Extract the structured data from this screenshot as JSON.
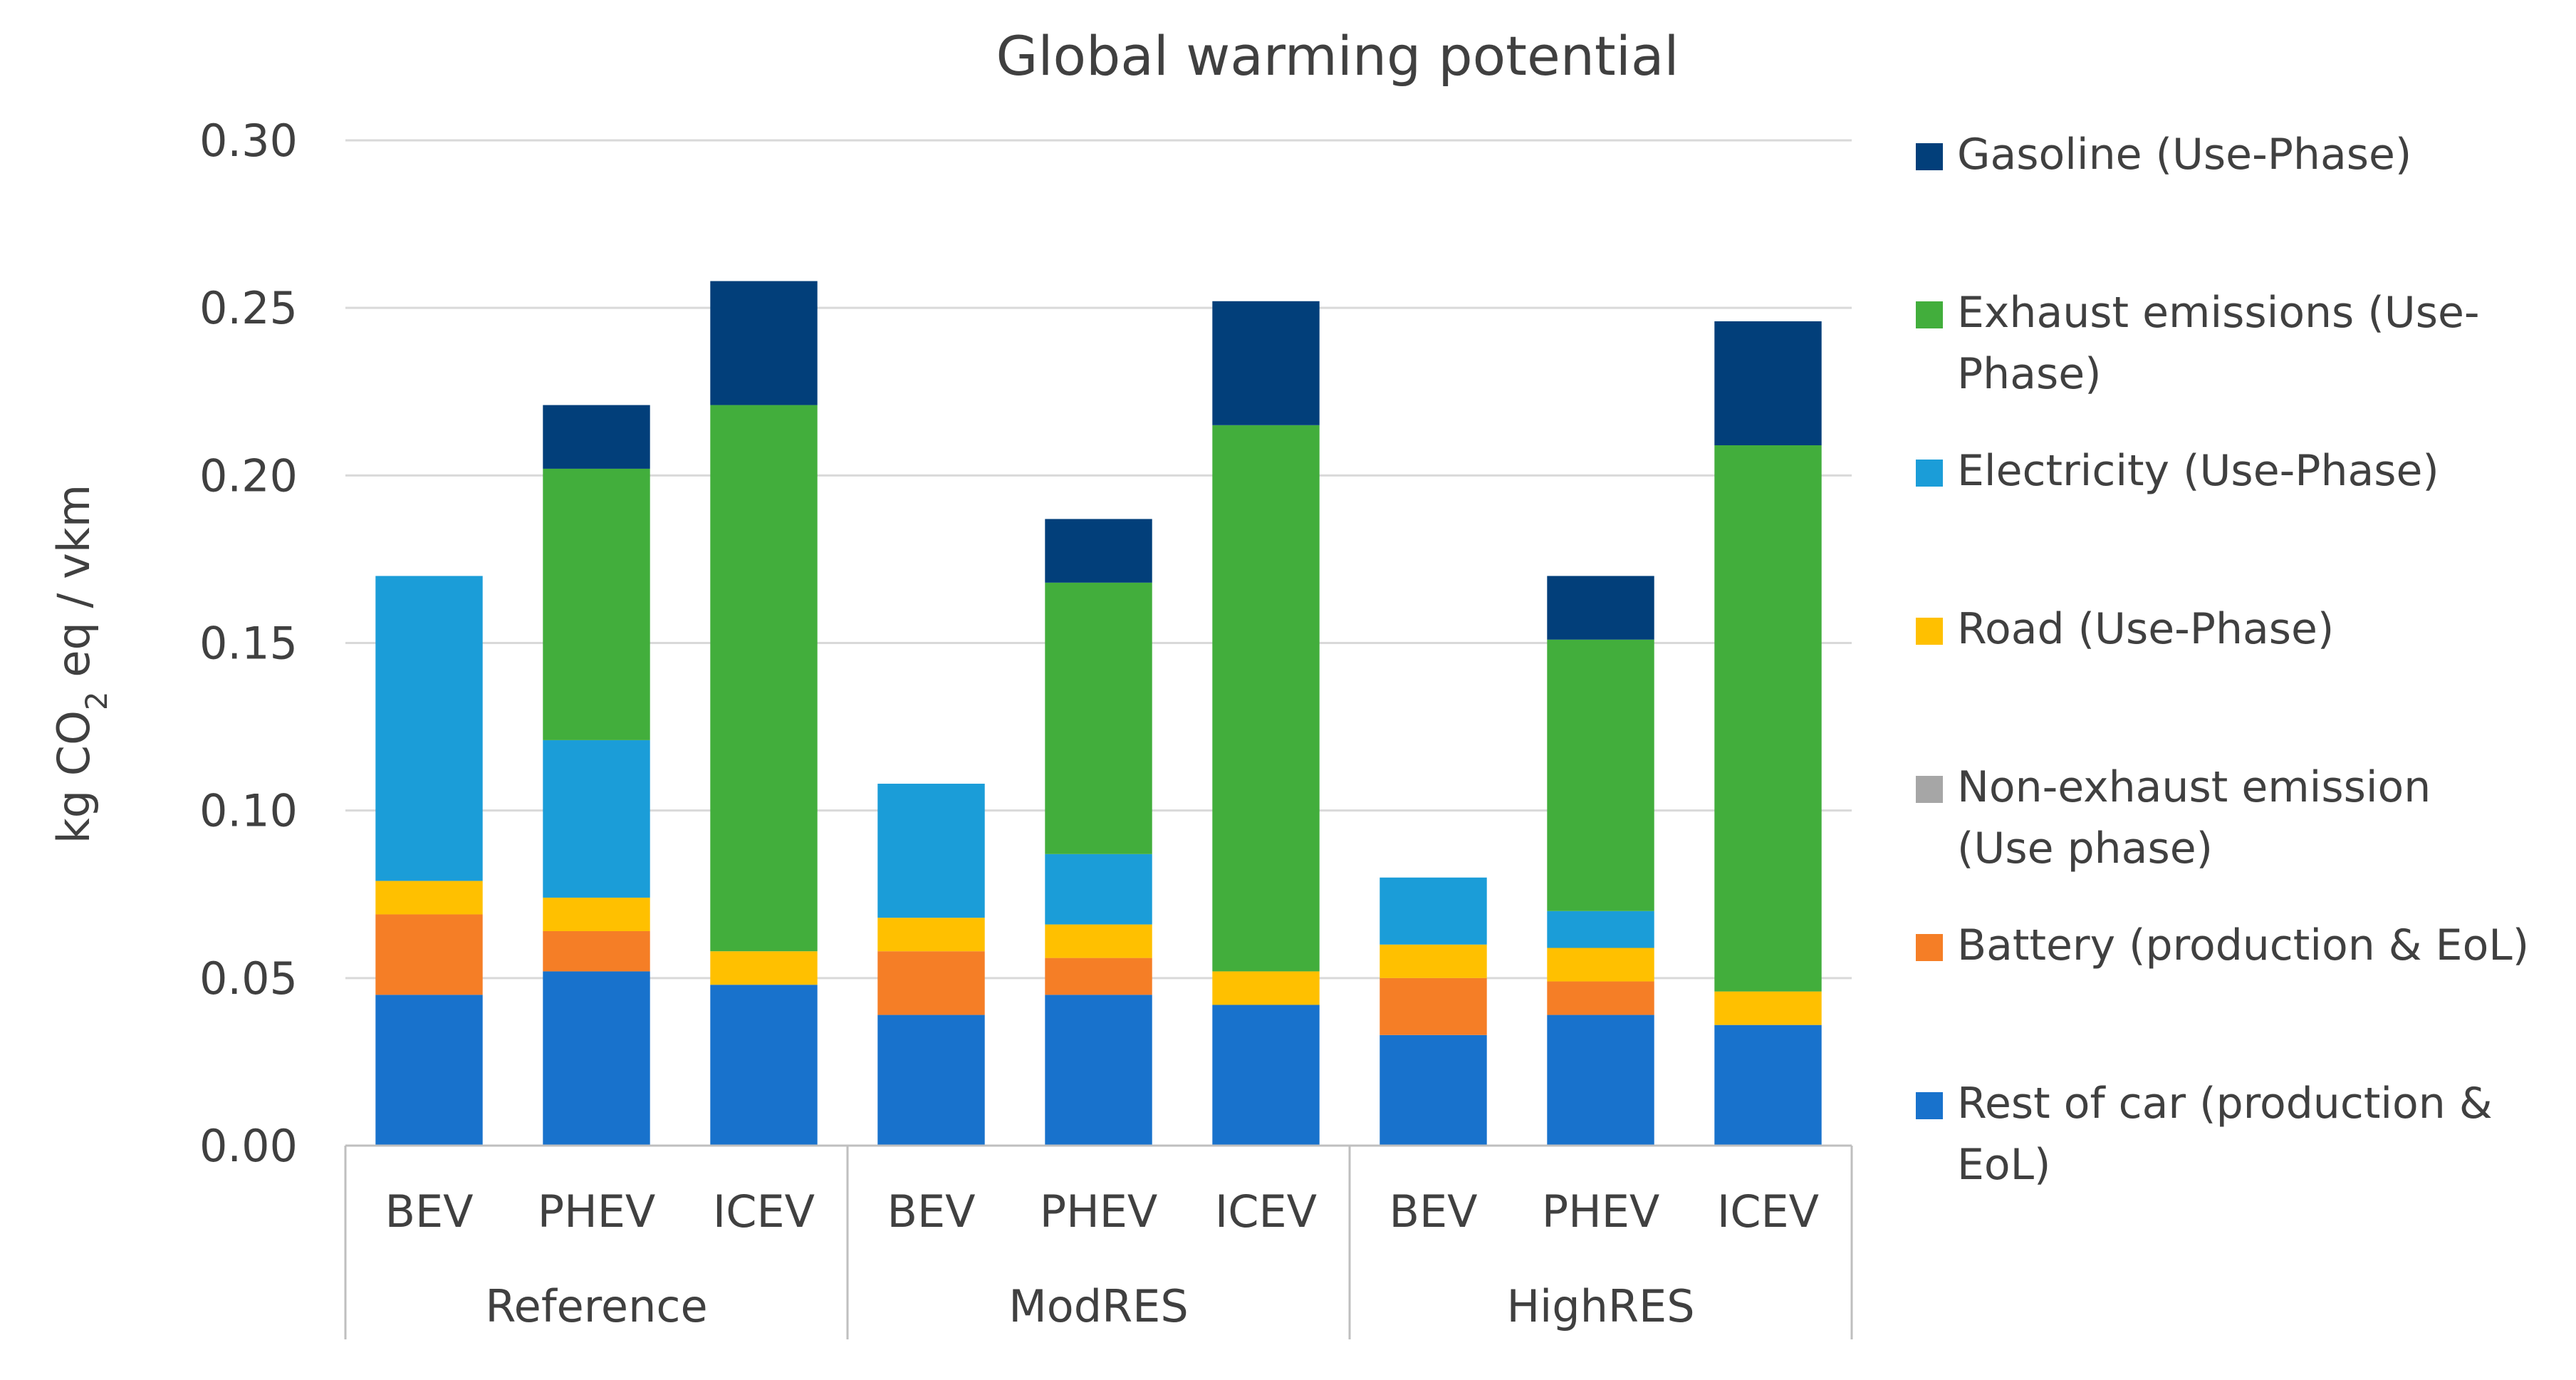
{
  "chart_data": {
    "type": "bar",
    "stacked": true,
    "title": "Global warming potential",
    "ylabel": {
      "prefix": "kg CO",
      "subscript": "2",
      "suffix": " eq / vkm"
    },
    "xlabel": "",
    "ylim": [
      0,
      0.3
    ],
    "yticks": [
      "0.00",
      "0.05",
      "0.10",
      "0.15",
      "0.20",
      "0.25",
      "0.30"
    ],
    "ytick_values": [
      0,
      0.05,
      0.1,
      0.15,
      0.2,
      0.25,
      0.3
    ],
    "grid": true,
    "legend_position": "right",
    "groups": [
      {
        "name": "Reference",
        "categories": [
          "BEV",
          "PHEV",
          "ICEV"
        ]
      },
      {
        "name": "ModRES",
        "categories": [
          "BEV",
          "PHEV",
          "ICEV"
        ]
      },
      {
        "name": "HighRES",
        "categories": [
          "BEV",
          "PHEV",
          "ICEV"
        ]
      }
    ],
    "categories": [
      "BEV",
      "PHEV",
      "ICEV",
      "BEV",
      "PHEV",
      "ICEV",
      "BEV",
      "PHEV",
      "ICEV"
    ],
    "series": [
      {
        "name": "Rest of car (production & EoL)",
        "color": "#1872CC",
        "values": [
          0.045,
          0.052,
          0.048,
          0.039,
          0.045,
          0.042,
          0.033,
          0.039,
          0.036
        ]
      },
      {
        "name": "Battery (production & EoL)",
        "color": "#F57E26",
        "values": [
          0.024,
          0.012,
          0.0,
          0.019,
          0.011,
          0.0,
          0.017,
          0.01,
          0.0
        ]
      },
      {
        "name": "Non-exhaust emission (Use phase)",
        "color": "#A6A6A6",
        "values": [
          0.0,
          0.0,
          0.0,
          0.0,
          0.0,
          0.0,
          0.0,
          0.0,
          0.0
        ]
      },
      {
        "name": " Road (Use-Phase)",
        "color": "#FFC000",
        "values": [
          0.01,
          0.01,
          0.01,
          0.01,
          0.01,
          0.01,
          0.01,
          0.01,
          0.01
        ]
      },
      {
        "name": "Electricity (Use-Phase)",
        "color": "#1B9DD8",
        "values": [
          0.091,
          0.047,
          0.0,
          0.04,
          0.021,
          0.0,
          0.02,
          0.011,
          0.0
        ]
      },
      {
        "name": "Exhaust emissions (Use-Phase)",
        "color": "#42AE3C",
        "values": [
          0.0,
          0.081,
          0.163,
          0.0,
          0.081,
          0.163,
          0.0,
          0.081,
          0.163
        ]
      },
      {
        "name": "Gasoline (Use-Phase)",
        "color": "#023F7A",
        "values": [
          0.0,
          0.019,
          0.037,
          0.0,
          0.019,
          0.037,
          0.0,
          0.019,
          0.037
        ]
      }
    ],
    "legend": [
      {
        "lines": [
          "Gasoline (Use-Phase)"
        ],
        "color": "#023F7A"
      },
      {
        "lines": [
          "Exhaust emissions (Use-",
          "Phase)"
        ],
        "color": "#42AE3C"
      },
      {
        "lines": [
          "Electricity (Use-Phase)"
        ],
        "color": "#1B9DD8"
      },
      {
        "lines": [
          " Road (Use-Phase)"
        ],
        "color": "#FFC000"
      },
      {
        "lines": [
          "Non-exhaust emission",
          "(Use phase)"
        ],
        "color": "#A6A6A6"
      },
      {
        "lines": [
          "Battery (production & EoL)"
        ],
        "color": "#F57E26"
      },
      {
        "lines": [
          "Rest of car (production &",
          "EoL)"
        ],
        "color": "#1872CC"
      }
    ],
    "colors": {
      "grid": "#D9D9D9",
      "axis": "#BFBFBF",
      "text": "#404040"
    }
  }
}
